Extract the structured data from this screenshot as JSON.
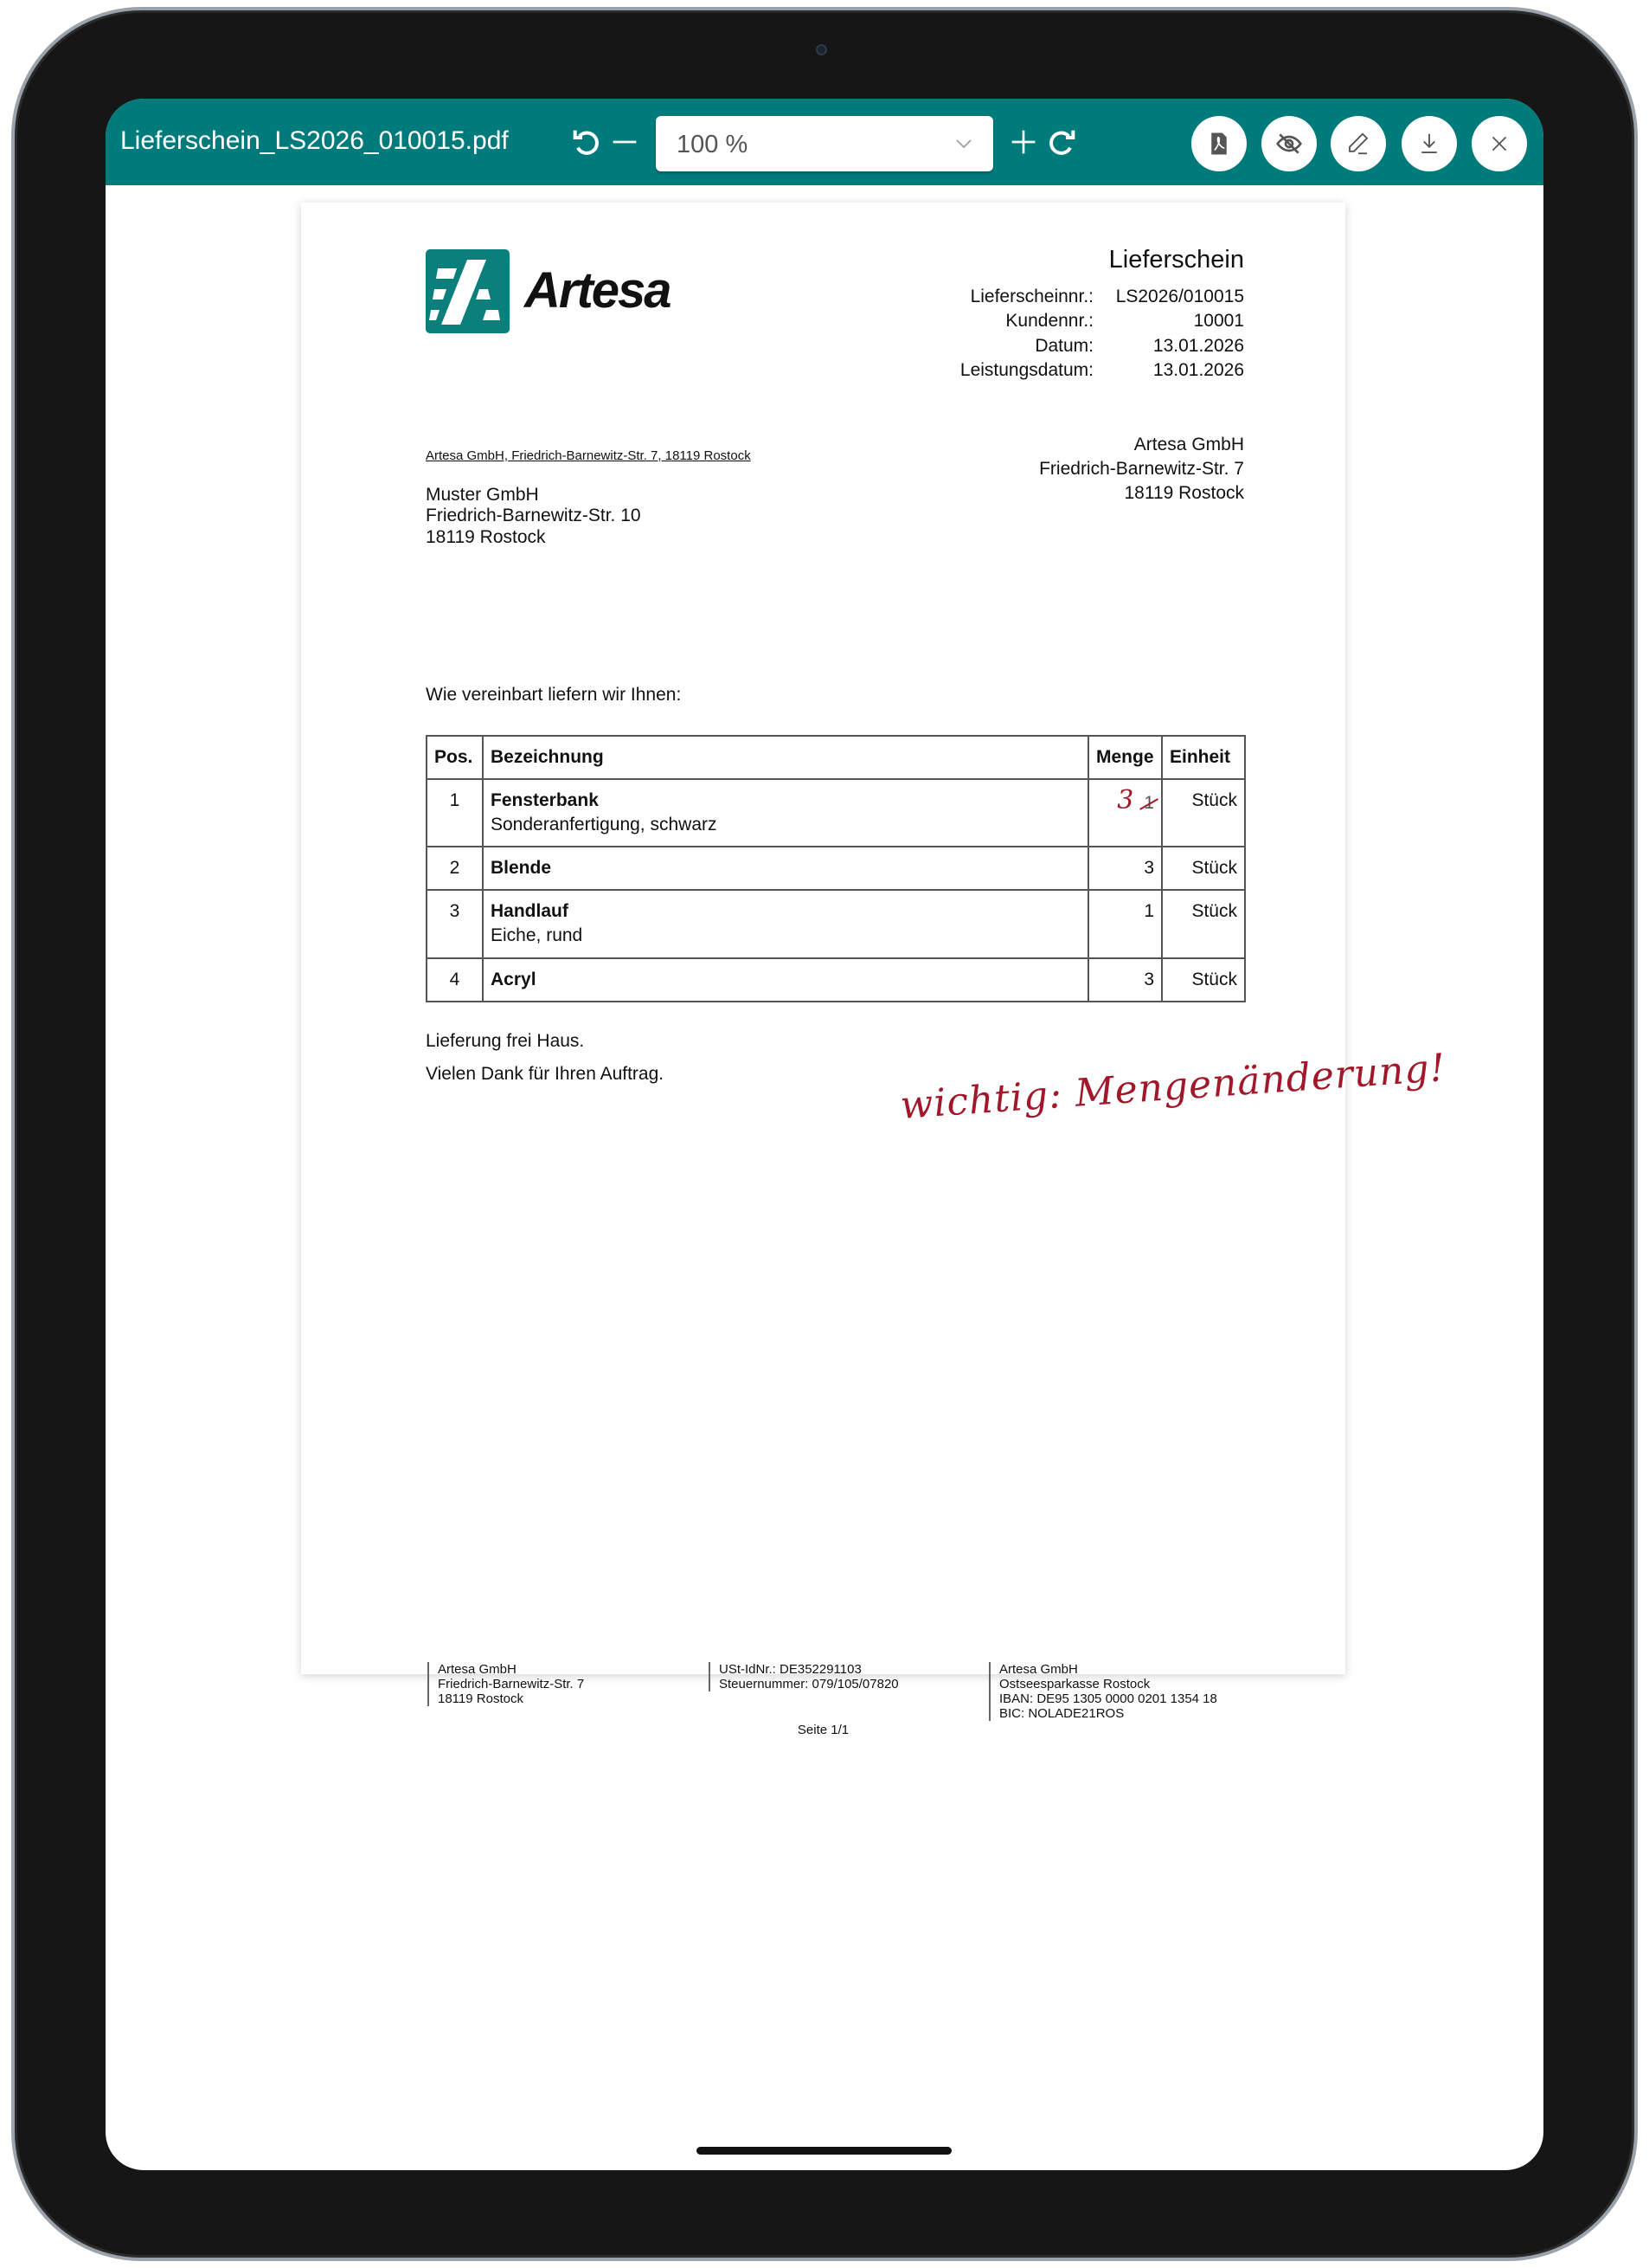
{
  "toolbar": {
    "filename": "Lieferschein_LS2026_010015.pdf",
    "zoom": "100 %",
    "icons": [
      "rotate-left-icon",
      "minus-icon",
      "chevron-down-icon",
      "plus-icon",
      "rotate-right-icon",
      "pdf-icon",
      "hide-icon",
      "pen-icon",
      "download-icon",
      "close-icon"
    ]
  },
  "document": {
    "company": "Artesa",
    "doc_title": "Lieferschein",
    "info": [
      {
        "label": "Lieferscheinnr.:",
        "value": "LS2026/010015"
      },
      {
        "label": "Kundennr.:",
        "value": "10001"
      },
      {
        "label": "Datum:",
        "value": "13.01.2026"
      },
      {
        "label": "Leistungsdatum:",
        "value": "13.01.2026"
      }
    ],
    "sender_line": "Artesa GmbH, Friedrich-Barnewitz-Str. 7, 18119 Rostock",
    "sender": [
      "Artesa GmbH",
      "Friedrich-Barnewitz-Str. 7",
      "18119 Rostock"
    ],
    "recipient": [
      "Muster GmbH",
      "Friedrich-Barnewitz-Str. 10",
      "18119 Rostock"
    ],
    "intro": "Wie vereinbart liefern wir Ihnen:",
    "table": {
      "headers": [
        "Pos.",
        "Bezeichnung",
        "Menge",
        "Einheit"
      ],
      "rows": [
        {
          "pos": "1",
          "name": "Fensterbank",
          "desc": "Sonderanfertigung, schwarz",
          "qty": "1",
          "unit": "Stück",
          "corrected_qty": "3"
        },
        {
          "pos": "2",
          "name": "Blende",
          "desc": "",
          "qty": "3",
          "unit": "Stück"
        },
        {
          "pos": "3",
          "name": "Handlauf",
          "desc": "Eiche, rund",
          "qty": "1",
          "unit": "Stück"
        },
        {
          "pos": "4",
          "name": "Acryl",
          "desc": "",
          "qty": "3",
          "unit": "Stück"
        }
      ]
    },
    "note1": "Lieferung frei Haus.",
    "note2": "Vielen Dank für Ihren Auftrag.",
    "handwritten_note": "wichtig: Mengenänderung!",
    "annotation_color": "#a0182a",
    "footer": {
      "col1": [
        "Artesa GmbH",
        "Friedrich-Barnewitz-Str. 7",
        "18119 Rostock"
      ],
      "col2": [
        "USt-IdNr.: DE352291103",
        "Steuernummer: 079/105/07820"
      ],
      "col3": [
        "Artesa GmbH",
        "Ostseesparkasse Rostock",
        "IBAN: DE95 1305 0000 0201 1354 18",
        "BIC: NOLADE21ROS"
      ]
    },
    "page_label": "Seite 1/1"
  },
  "colors": {
    "toolbar": "#007b7b",
    "brand": "#0a7f7c"
  }
}
